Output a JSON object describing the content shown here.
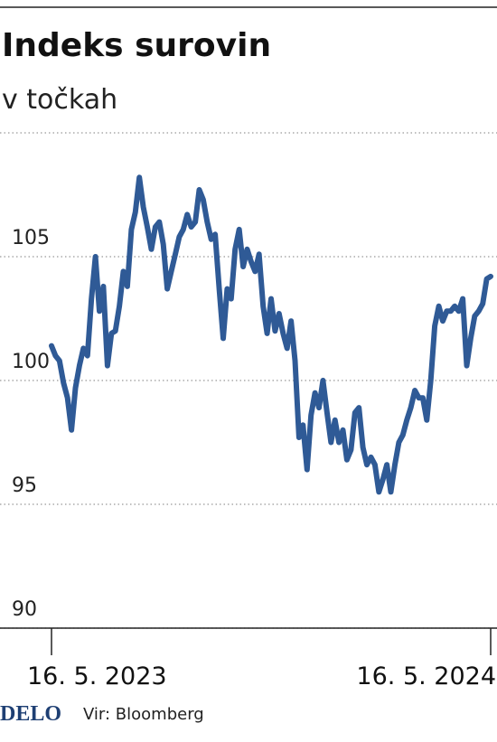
{
  "chart_data": {
    "type": "line",
    "title": "Indeks surovin",
    "subtitle": "v točkah",
    "categories": [
      "16. 5. 2023",
      null,
      null,
      null,
      null,
      null,
      null,
      null,
      null,
      null,
      null,
      null,
      null,
      null,
      null,
      null,
      null,
      null,
      null,
      null,
      null,
      null,
      null,
      null,
      null,
      null,
      null,
      null,
      null,
      null,
      null,
      null,
      null,
      null,
      null,
      null,
      null,
      null,
      null,
      null,
      null,
      null,
      null,
      null,
      null,
      null,
      null,
      null,
      null,
      null,
      null,
      null,
      null,
      null,
      null,
      null,
      null,
      null,
      null,
      null,
      null,
      null,
      null,
      null,
      null,
      null,
      null,
      null,
      null,
      null,
      null,
      null,
      null,
      null,
      null,
      null,
      null,
      null,
      null,
      null,
      null,
      null,
      null,
      null,
      null,
      null,
      null,
      null,
      null,
      null,
      null,
      null,
      null,
      null,
      null,
      null,
      null,
      null,
      null,
      null,
      null,
      null,
      null,
      null,
      null,
      null,
      null,
      null,
      null,
      null,
      "16. 5. 2024"
    ],
    "values": [
      101.4,
      101.0,
      100.8,
      99.9,
      99.3,
      98.0,
      99.7,
      100.6,
      101.3,
      101.0,
      103.3,
      105.0,
      102.8,
      103.8,
      100.6,
      101.9,
      102.0,
      103.0,
      104.4,
      103.8,
      106.1,
      106.8,
      108.2,
      107.0,
      106.2,
      105.3,
      106.2,
      106.4,
      105.5,
      103.7,
      104.4,
      105.1,
      105.8,
      106.1,
      106.7,
      106.2,
      106.4,
      107.7,
      107.3,
      106.4,
      105.7,
      105.9,
      103.7,
      101.7,
      103.7,
      103.3,
      105.3,
      106.1,
      104.6,
      105.3,
      104.8,
      104.4,
      105.1,
      103.0,
      101.9,
      103.3,
      102.0,
      102.7,
      101.9,
      101.3,
      102.4,
      100.8,
      97.7,
      98.2,
      96.4,
      98.6,
      99.5,
      98.9,
      100.0,
      98.7,
      97.5,
      98.4,
      97.5,
      98.0,
      96.8,
      97.2,
      98.7,
      98.9,
      97.3,
      96.6,
      96.9,
      96.6,
      95.5,
      96.0,
      96.6,
      95.5,
      96.6,
      97.5,
      97.8,
      98.4,
      98.9,
      99.6,
      99.3,
      99.3,
      98.4,
      100.0,
      102.2,
      103.0,
      102.4,
      102.8,
      102.8,
      103.0,
      102.8,
      103.3,
      100.6,
      101.7,
      102.6,
      102.8,
      103.1,
      104.1,
      104.2
    ],
    "color": "#2f5a96",
    "ylim": [
      90,
      110
    ],
    "yticks": [
      90,
      95,
      100,
      105
    ],
    "grid": true
  },
  "footer": {
    "logo": "DELO",
    "source": "Vir: Bloomberg"
  }
}
